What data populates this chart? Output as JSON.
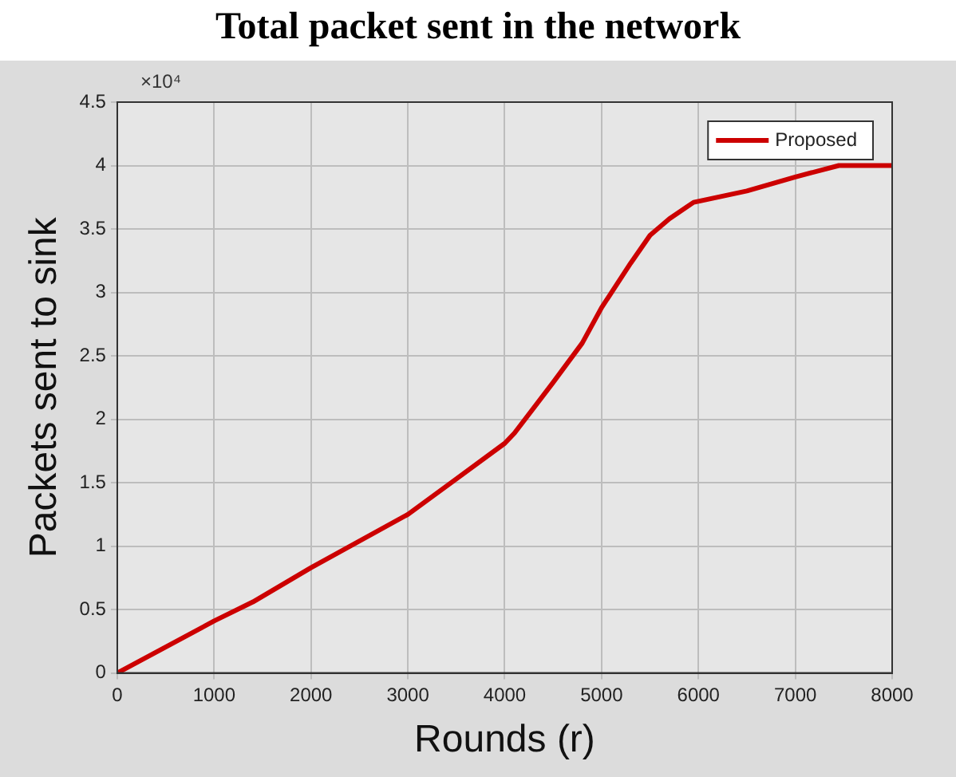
{
  "chart_data": {
    "type": "line",
    "title": "Total packet sent in the network",
    "xlabel": "Rounds (r)",
    "ylabel": "Packets sent to sink",
    "annotations": [
      "×10⁴"
    ],
    "x": [
      0,
      1000,
      1400,
      2000,
      3000,
      3500,
      4000,
      4100,
      4500,
      4800,
      5000,
      5300,
      5500,
      5700,
      5950,
      6500,
      7000,
      7450,
      8000
    ],
    "series": [
      {
        "name": "Proposed",
        "color": "#cc0000",
        "values": [
          0,
          0.41,
          0.56,
          0.83,
          1.25,
          1.53,
          1.81,
          1.89,
          2.29,
          2.6,
          2.88,
          3.23,
          3.45,
          3.58,
          3.71,
          3.8,
          3.91,
          4.0,
          4.0
        ]
      }
    ],
    "xlim": [
      0,
      8000
    ],
    "xticks": [
      0,
      1000,
      2000,
      3000,
      4000,
      5000,
      6000,
      7000,
      8000
    ],
    "ylim": [
      0,
      4.5
    ],
    "yticks": [
      0,
      0.5,
      1,
      1.5,
      2,
      2.5,
      3,
      3.5,
      4,
      4.5
    ],
    "grid": true,
    "legend": "top right",
    "marker": "none",
    "line_style": "solid"
  }
}
